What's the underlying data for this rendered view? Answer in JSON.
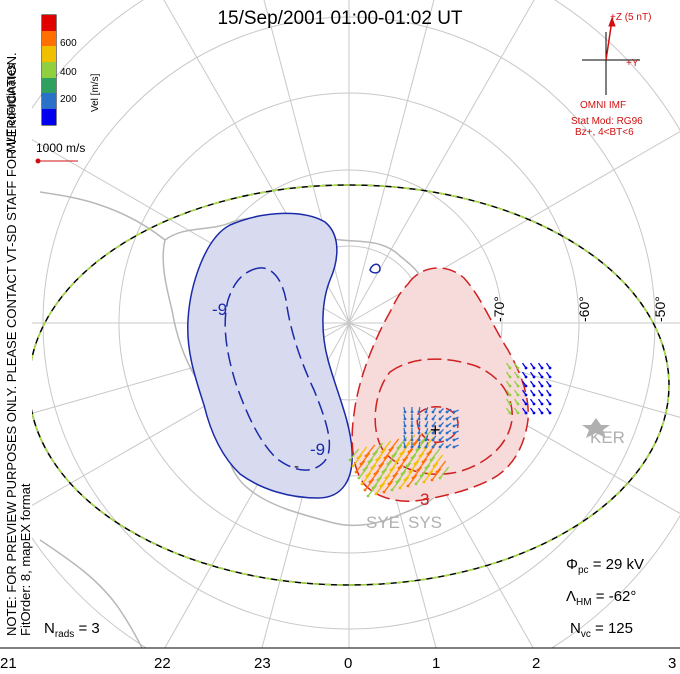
{
  "title": "15/Sep/2001 01:00-01:02 UT",
  "coordinate_system": "MLT coordinates",
  "velocity_scale": {
    "label": "Vel [m/s]",
    "ticks": [
      "600",
      "400",
      "200"
    ],
    "colors": [
      "#0000ee",
      "#2a72c8",
      "#30a060",
      "#90d040",
      "#f0c000",
      "#ff7000",
      "#e00000"
    ]
  },
  "vector_reference": "1000 m/s",
  "imf": {
    "axis_z": "+Z (5 nT)",
    "axis_y": "+Y",
    "source": "OMNI IMF",
    "model": "Stat Mod: RG96",
    "condition": "Bz+, 4<BT<6"
  },
  "note": "NOTE: FOR PREVIEW PURPOSES ONLY. PLEASE CONTACT VT-SD STAFF FOR VERIFICATION.",
  "fit_info": "FitOrder: 8, mapEX format",
  "latitude_labels": [
    "-70°",
    "-60°",
    "-50°"
  ],
  "stations": [
    "KER",
    "SYE",
    "SYS"
  ],
  "contour_labels": [
    "-9",
    "-9",
    "-",
    "+",
    "3"
  ],
  "stats": {
    "phi_pc": "29 kV",
    "lambda_hm": "-62°",
    "n_vc": "125",
    "n_rads": "3"
  },
  "mlt_ticks": [
    "21",
    "22",
    "23",
    "0",
    "1",
    "2",
    "3"
  ],
  "colors": {
    "negative_cell": "#1a2aa8",
    "positive_cell": "#d02020",
    "boundary_dash": "#a8e040",
    "grid": "#c8c8c8",
    "coast": "#b8b8b8"
  }
}
